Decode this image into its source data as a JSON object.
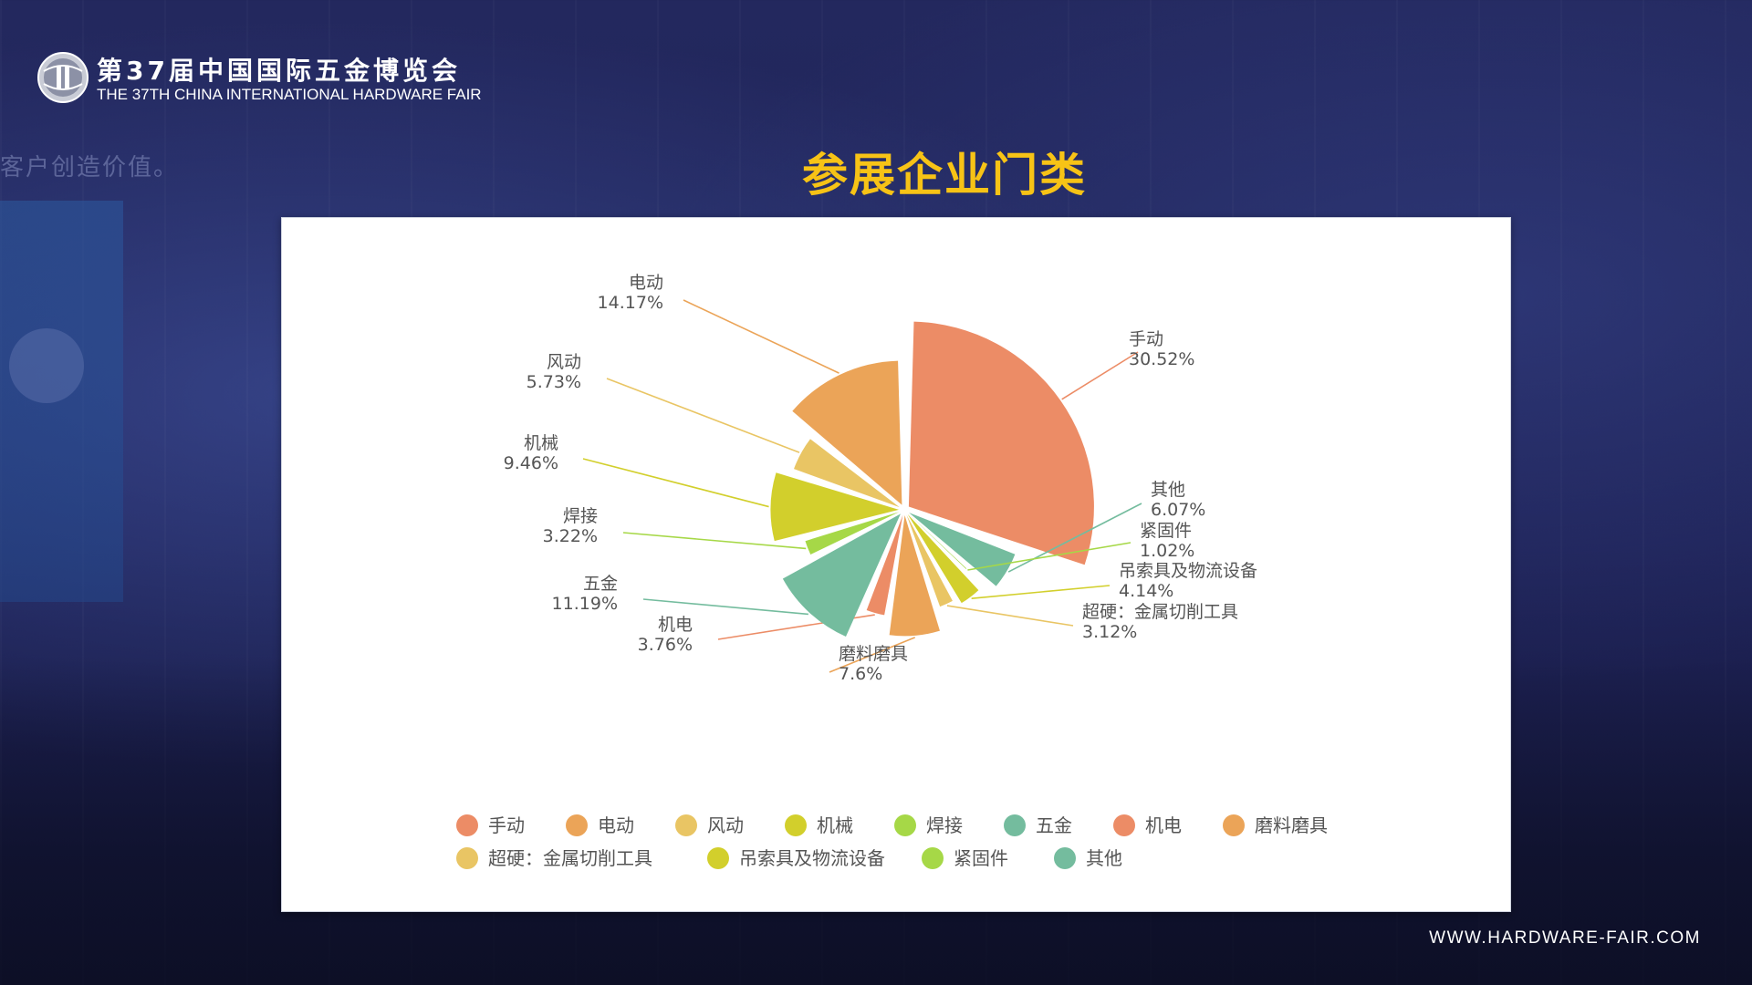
{
  "header": {
    "title_cn": "第37届中国国际五金博览会",
    "title_en": "THE 37TH CHINA INTERNATIONAL HARDWARE FAIR"
  },
  "background": {
    "sign_text": "客户创造价值。"
  },
  "slide": {
    "title": "参展企业门类"
  },
  "footer": {
    "website": "WWW.HARDWARE-FAIR.COM"
  },
  "colors": {
    "title_yellow": "#f7c316",
    "background_navy": "#1e2256"
  },
  "chart_data": {
    "type": "pie",
    "title": "",
    "legend_position": "bottom",
    "slices": [
      {
        "name": "手动",
        "value": 30.52,
        "label": "30.52%",
        "color": "#ec8c66"
      },
      {
        "name": "其他",
        "value": 6.07,
        "label": "6.07%",
        "color": "#74bc9e"
      },
      {
        "name": "紧固件",
        "value": 1.02,
        "label": "1.02%",
        "color": "#a6d847"
      },
      {
        "name": "吊索具及物流设备",
        "value": 4.14,
        "label": "4.14%",
        "color": "#d2cf2c"
      },
      {
        "name": "超硬：金属切削工具",
        "value": 3.12,
        "label": "3.12%",
        "color": "#e9c564"
      },
      {
        "name": "磨料磨具",
        "value": 7.6,
        "label": "7.6%",
        "color": "#eba458"
      },
      {
        "name": "机电",
        "value": 3.76,
        "label": "3.76%",
        "color": "#ec8c66"
      },
      {
        "name": "五金",
        "value": 11.19,
        "label": "11.19%",
        "color": "#74bc9e"
      },
      {
        "name": "焊接",
        "value": 3.22,
        "label": "3.22%",
        "color": "#a6d847"
      },
      {
        "name": "机械",
        "value": 9.46,
        "label": "9.46%",
        "color": "#d2cf2c"
      },
      {
        "name": "风动",
        "value": 5.73,
        "label": "5.73%",
        "color": "#e9c564"
      },
      {
        "name": "电动",
        "value": 14.17,
        "label": "14.17%",
        "color": "#eba458"
      }
    ],
    "legend": [
      {
        "name": "手动",
        "color": "#ec8c66"
      },
      {
        "name": "电动",
        "color": "#eba458"
      },
      {
        "name": "风动",
        "color": "#e9c564"
      },
      {
        "name": "机械",
        "color": "#d2cf2c"
      },
      {
        "name": "焊接",
        "color": "#a6d847"
      },
      {
        "name": "五金",
        "color": "#74bc9e"
      },
      {
        "name": "机电",
        "color": "#ec8c66"
      },
      {
        "name": "磨料磨具",
        "color": "#eba458"
      },
      {
        "name": "超硬：金属切削工具",
        "color": "#e9c564"
      },
      {
        "name": "吊索具及物流设备",
        "color": "#d2cf2c"
      },
      {
        "name": "紧固件",
        "color": "#a6d847"
      },
      {
        "name": "其他",
        "color": "#74bc9e"
      }
    ]
  }
}
